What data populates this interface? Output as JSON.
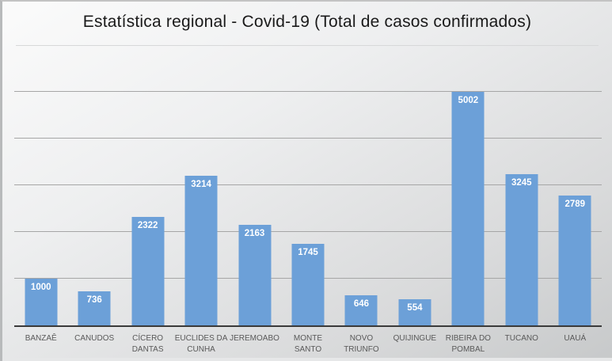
{
  "title": "Estatística regional - Covid-19 (Total de casos confirmados)",
  "chart_data": {
    "type": "bar",
    "title": "Estatística regional - Covid-19 (Total de casos confirmados)",
    "categories": [
      "BANZAÊ",
      "CANUDOS",
      "CÍCERO DANTAS",
      "EUCLIDES DA CUNHA",
      "JEREMOABO",
      "MONTE SANTO",
      "NOVO TRIUNFO",
      "QUIJINGUE",
      "RIBEIRA DO POMBAL",
      "TUCANO",
      "UAUÁ"
    ],
    "values": [
      1000,
      736,
      2322,
      3214,
      2163,
      1745,
      646,
      554,
      5002,
      3245,
      2789
    ],
    "xlabel": "",
    "ylabel": "",
    "ylim": [
      0,
      5500
    ],
    "gridlines": [
      1000,
      2000,
      3000,
      4000,
      5000
    ],
    "grid": true,
    "legend": false,
    "y_axis_labels": false,
    "data_labels": {
      "position": "inside-end",
      "color": "#ffffff"
    },
    "colors": {
      "bar": "#6CA0D8",
      "gridline": "#a6a6a6",
      "axis_line": "#3a3a3a",
      "category_label": "#595959",
      "title": "#1a1a1a"
    }
  }
}
